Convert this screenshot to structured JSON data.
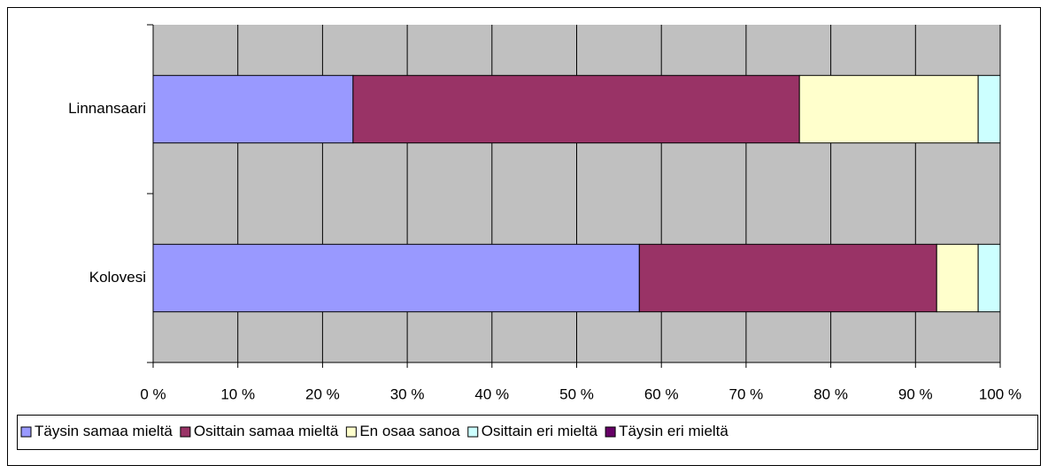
{
  "chart_data": {
    "type": "stacked_bar_horizontal",
    "categories": [
      "Linnansaari",
      "Kolovesi"
    ],
    "series": [
      {
        "name": "Täysin samaa mieltä",
        "color": "#9999ff",
        "values": [
          23.6,
          57.4
        ]
      },
      {
        "name": "Osittain samaa mieltä",
        "color": "#993366",
        "values": [
          52.7,
          35.1
        ]
      },
      {
        "name": "En osaa sanoa",
        "color": "#ffffcc",
        "values": [
          21.1,
          4.9
        ]
      },
      {
        "name": "Osittain eri mieltä",
        "color": "#ccffff",
        "values": [
          2.6,
          2.6
        ]
      },
      {
        "name": "Täysin eri mieltä",
        "color": "#660066",
        "values": [
          0,
          0
        ]
      }
    ],
    "xlim": [
      0,
      100
    ],
    "xticks": [
      {
        "value": 0,
        "label": "0 %"
      },
      {
        "value": 10,
        "label": "10 %"
      },
      {
        "value": 20,
        "label": "20 %"
      },
      {
        "value": 30,
        "label": "30 %"
      },
      {
        "value": 40,
        "label": "40 %"
      },
      {
        "value": 50,
        "label": "50 %"
      },
      {
        "value": 60,
        "label": "60 %"
      },
      {
        "value": 70,
        "label": "70 %"
      },
      {
        "value": 80,
        "label": "80 %"
      },
      {
        "value": 90,
        "label": "90 %"
      },
      {
        "value": 100,
        "label": "100 %"
      }
    ],
    "grid": true,
    "plot_background": "#c0c0c0",
    "legend": "bottom"
  }
}
